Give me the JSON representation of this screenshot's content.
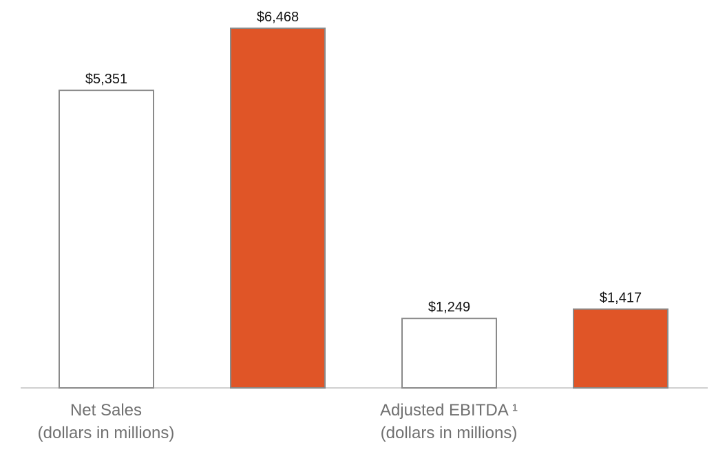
{
  "chart_data": {
    "type": "bar",
    "groups": [
      {
        "label_line1": "Net Sales",
        "label_line2": "(dollars in millions)",
        "bars": [
          {
            "value": 5351,
            "label": "$5,351",
            "style": "outline"
          },
          {
            "value": 6468,
            "label": "$6,468",
            "style": "filled"
          }
        ]
      },
      {
        "label_line1": "Adjusted EBITDA ¹",
        "label_line2": "(dollars in millions)",
        "bars": [
          {
            "value": 1249,
            "label": "$1,249",
            "style": "outline"
          },
          {
            "value": 1417,
            "label": "$1,417",
            "style": "filled"
          }
        ]
      }
    ],
    "colors": {
      "filled": "#e05527",
      "outline_stroke": "#8a8a8a",
      "outline_fill": "#ffffff",
      "baseline": "#d0d0d0"
    }
  }
}
